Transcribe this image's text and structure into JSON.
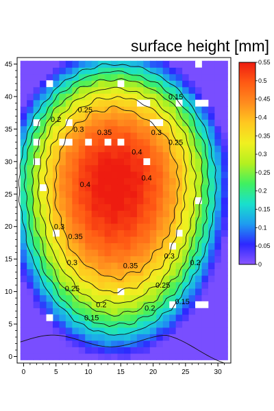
{
  "chart_data": {
    "type": "heatmap",
    "title": "surface height [mm]",
    "xlabel": "",
    "ylabel": "",
    "xlim": [
      -1,
      32
    ],
    "ylim": [
      -1,
      46
    ],
    "x_ticks": [
      "0",
      "5",
      "10",
      "15",
      "20",
      "25",
      "30"
    ],
    "x_tick_values": [
      0,
      5,
      10,
      15,
      20,
      25,
      30
    ],
    "y_ticks": [
      "0",
      "5",
      "10",
      "15",
      "20",
      "25",
      "30",
      "35",
      "40",
      "45"
    ],
    "y_tick_values": [
      0,
      5,
      10,
      15,
      20,
      25,
      30,
      35,
      40,
      45
    ],
    "grid": false,
    "legend": "colorbar-right",
    "field": {
      "center_x": 14,
      "center_y": 27,
      "peak": 0.56,
      "x_range": [
        0,
        31
      ],
      "y_range": [
        0,
        45
      ]
    },
    "colorbar": {
      "min": 0,
      "max": 0.55,
      "ticks": [
        "0",
        "0.05",
        "0.1",
        "0.15",
        "0.2",
        "0.25",
        "0.3",
        "0.35",
        "0.4",
        "0.45",
        "0.5",
        "0.55"
      ],
      "tick_values": [
        0,
        0.05,
        0.1,
        0.15,
        0.2,
        0.25,
        0.3,
        0.35,
        0.4,
        0.45,
        0.5,
        0.55
      ],
      "colors": [
        "#8a56ff",
        "#2d28ff",
        "#1e9cf0",
        "#19e0cc",
        "#40f060",
        "#b4f020",
        "#f0f020",
        "#ffc820",
        "#ff8c1e",
        "#ff5a14",
        "#ee1c10"
      ]
    },
    "contour_levels": [
      0.15,
      0.2,
      0.25,
      0.3,
      0.35,
      0.4
    ],
    "contour_labels": [
      {
        "text": "0.15",
        "x": 10.5,
        "y": 6.0
      },
      {
        "text": "0.15",
        "x": 23.5,
        "y": 40.0
      },
      {
        "text": "0.15",
        "x": 24.5,
        "y": 8.5
      },
      {
        "text": "0.2",
        "x": 5.0,
        "y": 36.5
      },
      {
        "text": "0.2",
        "x": 12.0,
        "y": 8.0
      },
      {
        "text": "0.2",
        "x": 26.5,
        "y": 14.5
      },
      {
        "text": "0.2",
        "x": 19.5,
        "y": 7.5
      },
      {
        "text": "0.25",
        "x": 9.5,
        "y": 38.0
      },
      {
        "text": "0.25",
        "x": 23.5,
        "y": 33.0
      },
      {
        "text": "0.25",
        "x": 7.5,
        "y": 10.5
      },
      {
        "text": "0.25",
        "x": 21.5,
        "y": 11.0
      },
      {
        "text": "0.3",
        "x": 8.5,
        "y": 35.0
      },
      {
        "text": "0.3",
        "x": 20.5,
        "y": 34.5
      },
      {
        "text": "0.3",
        "x": 5.5,
        "y": 20.0
      },
      {
        "text": "0.3",
        "x": 7.5,
        "y": 14.5
      },
      {
        "text": "0.3",
        "x": 22.5,
        "y": 15.5
      },
      {
        "text": "0.35",
        "x": 12.5,
        "y": 34.5
      },
      {
        "text": "0.35",
        "x": 8.0,
        "y": 18.5
      },
      {
        "text": "0.35",
        "x": 16.5,
        "y": 14.0
      },
      {
        "text": "0.4",
        "x": 17.5,
        "y": 31.5
      },
      {
        "text": "0.4",
        "x": 19.0,
        "y": 27.5
      },
      {
        "text": "0.4",
        "x": 9.5,
        "y": 26.5
      }
    ],
    "missing_cells": [
      [
        4,
        42
      ],
      [
        15,
        42
      ],
      [
        27,
        45
      ],
      [
        18,
        39
      ],
      [
        19,
        39
      ],
      [
        24,
        39
      ],
      [
        27,
        39
      ],
      [
        28,
        39
      ],
      [
        2,
        36
      ],
      [
        7,
        36
      ],
      [
        20,
        36
      ],
      [
        21,
        36
      ],
      [
        2,
        33
      ],
      [
        6,
        33
      ],
      [
        7,
        33
      ],
      [
        10,
        33
      ],
      [
        13,
        33
      ],
      [
        15,
        33
      ],
      [
        2,
        30
      ],
      [
        19,
        30
      ],
      [
        3,
        26
      ],
      [
        27,
        24
      ],
      [
        5,
        19
      ],
      [
        24,
        19
      ],
      [
        23,
        17
      ],
      [
        15,
        10
      ],
      [
        23,
        8
      ],
      [
        27,
        8
      ],
      [
        28,
        8
      ],
      [
        4,
        6
      ]
    ]
  }
}
